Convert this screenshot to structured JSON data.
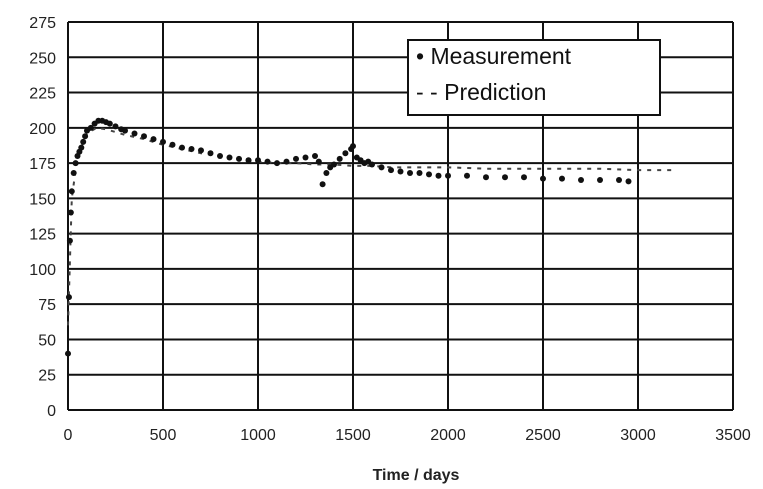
{
  "chart_data": {
    "type": "scatter",
    "title": "",
    "xlabel": "Time / days",
    "ylabel": "",
    "xlim": [
      0,
      3500
    ],
    "ylim": [
      0,
      275
    ],
    "xticks": [
      0,
      500,
      1000,
      1500,
      2000,
      2500,
      3000,
      3500
    ],
    "yticks": [
      0,
      25,
      50,
      75,
      100,
      125,
      150,
      175,
      200,
      225,
      250,
      275
    ],
    "grid": true,
    "legend_position": "top-right",
    "series": [
      {
        "name": "Measurement",
        "style": "points",
        "color": "#111111",
        "x": [
          0,
          5,
          10,
          15,
          20,
          30,
          40,
          50,
          60,
          70,
          80,
          90,
          100,
          120,
          140,
          160,
          180,
          200,
          220,
          250,
          280,
          300,
          350,
          400,
          450,
          500,
          550,
          600,
          650,
          700,
          750,
          800,
          850,
          900,
          950,
          1000,
          1050,
          1100,
          1150,
          1200,
          1250,
          1300,
          1320,
          1340,
          1360,
          1380,
          1400,
          1430,
          1460,
          1490,
          1500,
          1520,
          1540,
          1560,
          1580,
          1600,
          1650,
          1700,
          1750,
          1800,
          1850,
          1900,
          1950,
          2000,
          2100,
          2200,
          2300,
          2400,
          2500,
          2600,
          2700,
          2800,
          2900,
          2950
        ],
        "y": [
          40,
          80,
          120,
          140,
          155,
          168,
          175,
          180,
          183,
          186,
          190,
          194,
          198,
          200,
          203,
          205,
          205,
          204,
          203,
          201,
          199,
          198,
          196,
          194,
          192,
          190,
          188,
          186,
          185,
          184,
          182,
          180,
          179,
          178,
          177,
          177,
          176,
          175,
          176,
          178,
          179,
          180,
          176,
          160,
          168,
          172,
          174,
          178,
          182,
          185,
          187,
          179,
          177,
          175,
          176,
          174,
          172,
          170,
          169,
          168,
          168,
          167,
          166,
          166,
          166,
          165,
          165,
          165,
          164,
          164,
          163,
          163,
          163,
          162
        ]
      },
      {
        "name": "Prediction",
        "style": "dashed",
        "color": "#444444",
        "x": [
          0,
          20,
          50,
          100,
          150,
          200,
          300,
          400,
          500,
          600,
          700,
          800,
          900,
          1000,
          1100,
          1200,
          1300,
          1400,
          1500,
          1600,
          1700,
          1800,
          2000,
          2200,
          2400,
          2600,
          2800,
          3000,
          3200
        ],
        "y": [
          60,
          150,
          180,
          196,
          200,
          199,
          195,
          192,
          188,
          185,
          182,
          180,
          178,
          176,
          175,
          175,
          174,
          174,
          173,
          173,
          172,
          172,
          172,
          171,
          171,
          171,
          171,
          170,
          170
        ]
      }
    ],
    "legend_entries": [
      "• Measurement",
      "- - Prediction"
    ]
  }
}
